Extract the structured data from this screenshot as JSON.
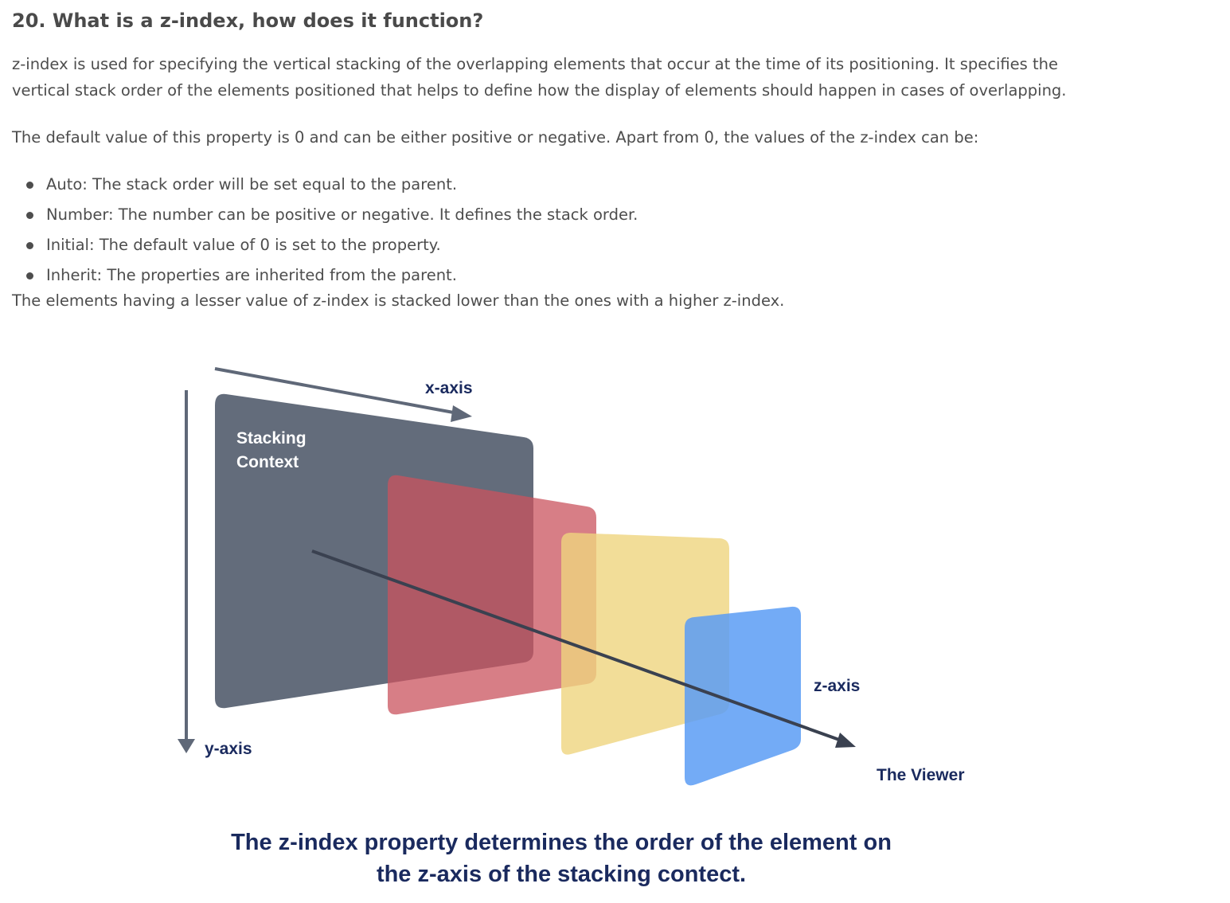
{
  "question": {
    "title": "20. What is a z-index, how does it function?"
  },
  "body": {
    "paragraph1": "z-index is used for specifying the vertical stacking of the overlapping elements that occur at the time of its positioning. It specifies the vertical stack order of the elements positioned that helps to define how the display of elements should happen in cases of overlapping.",
    "paragraph2": "The default value of this property is 0 and can be either positive or negative. Apart from 0, the values of the z-index can be:",
    "list": [
      "Auto: The stack order will be set equal to the parent.",
      "Number: The number can be positive or negative. It defines the stack order.",
      "Initial: The default value of 0 is set to the property.",
      "Inherit: The properties are inherited from the parent."
    ],
    "paragraph3": "The elements having a lesser value of z-index is stacked lower than the ones with a higher z-index."
  },
  "figure": {
    "x_axis_label": "x-axis",
    "y_axis_label": "y-axis",
    "z_axis_label": "z-axis",
    "stacking_context_line1": "Stacking",
    "stacking_context_line2": "Context",
    "viewer_label": "The Viewer",
    "caption_line1": "The z-index property determines the order of the element on",
    "caption_line2": "the z-axis of the stacking contect.",
    "colors": {
      "stacking_context": "#636c7b",
      "layer_red": "#c9535d",
      "layer_yellow": "#efd47e",
      "layer_blue": "#5b9cf5",
      "axis": "#5f6878",
      "z_axis_line": "#3a4150",
      "caption": "#1a2a5e"
    }
  }
}
